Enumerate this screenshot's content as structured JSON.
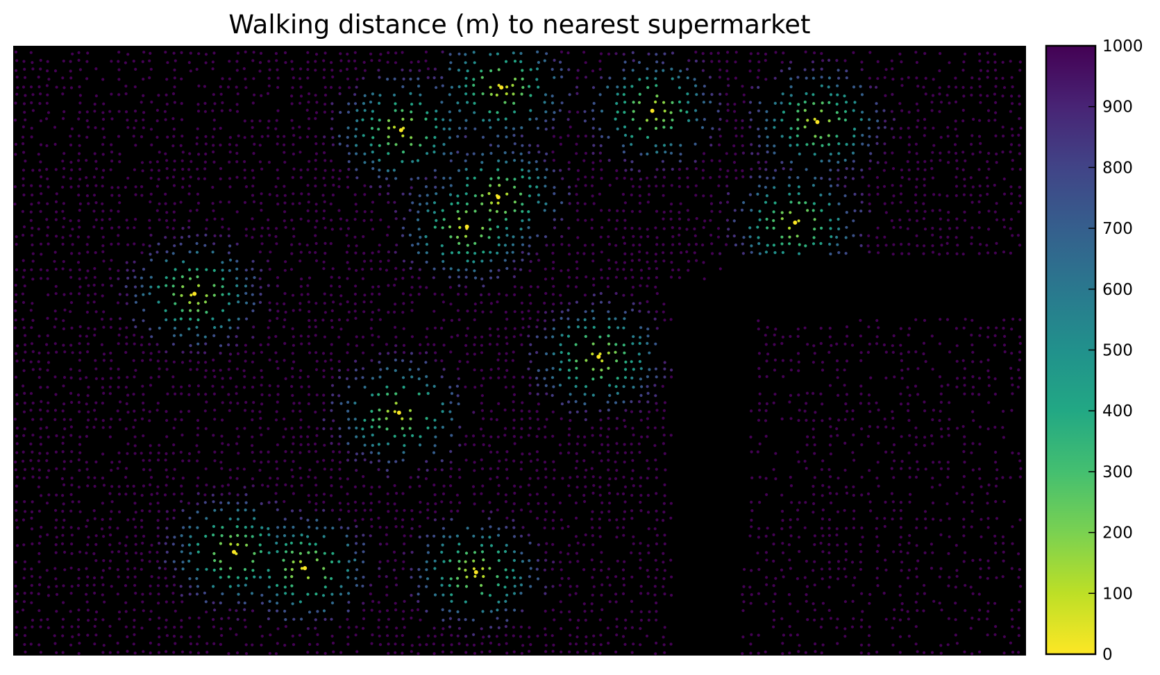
{
  "chart_data": {
    "type": "scatter",
    "title": "Walking distance (m) to nearest supermarket",
    "xlabel": "",
    "ylabel": "",
    "axes_visible": false,
    "background": "#000000",
    "xlim": [
      0,
      100
    ],
    "ylim": [
      0,
      60
    ],
    "colormap": "viridis_r",
    "colorbar": {
      "vmin": 0,
      "vmax": 1000,
      "ticks": [
        0,
        100,
        200,
        300,
        400,
        500,
        600,
        700,
        800,
        900,
        1000
      ],
      "tick_labels": [
        "0",
        "100",
        "200",
        "300",
        "400",
        "500",
        "600",
        "700",
        "800",
        "900",
        "1000"
      ]
    },
    "supermarkets": [
      [
        17.9,
        35.6
      ],
      [
        48.2,
        55.9
      ],
      [
        63.1,
        53.6
      ],
      [
        79.4,
        52.5
      ],
      [
        47.9,
        45.1
      ],
      [
        44.8,
        42.2
      ],
      [
        38.3,
        51.7
      ],
      [
        57.8,
        29.4
      ],
      [
        38.1,
        23.9
      ],
      [
        21.8,
        10.2
      ],
      [
        28.8,
        8.6
      ],
      [
        45.7,
        8.2
      ],
      [
        77.2,
        42.6
      ]
    ],
    "meters_per_unit": 130
  }
}
